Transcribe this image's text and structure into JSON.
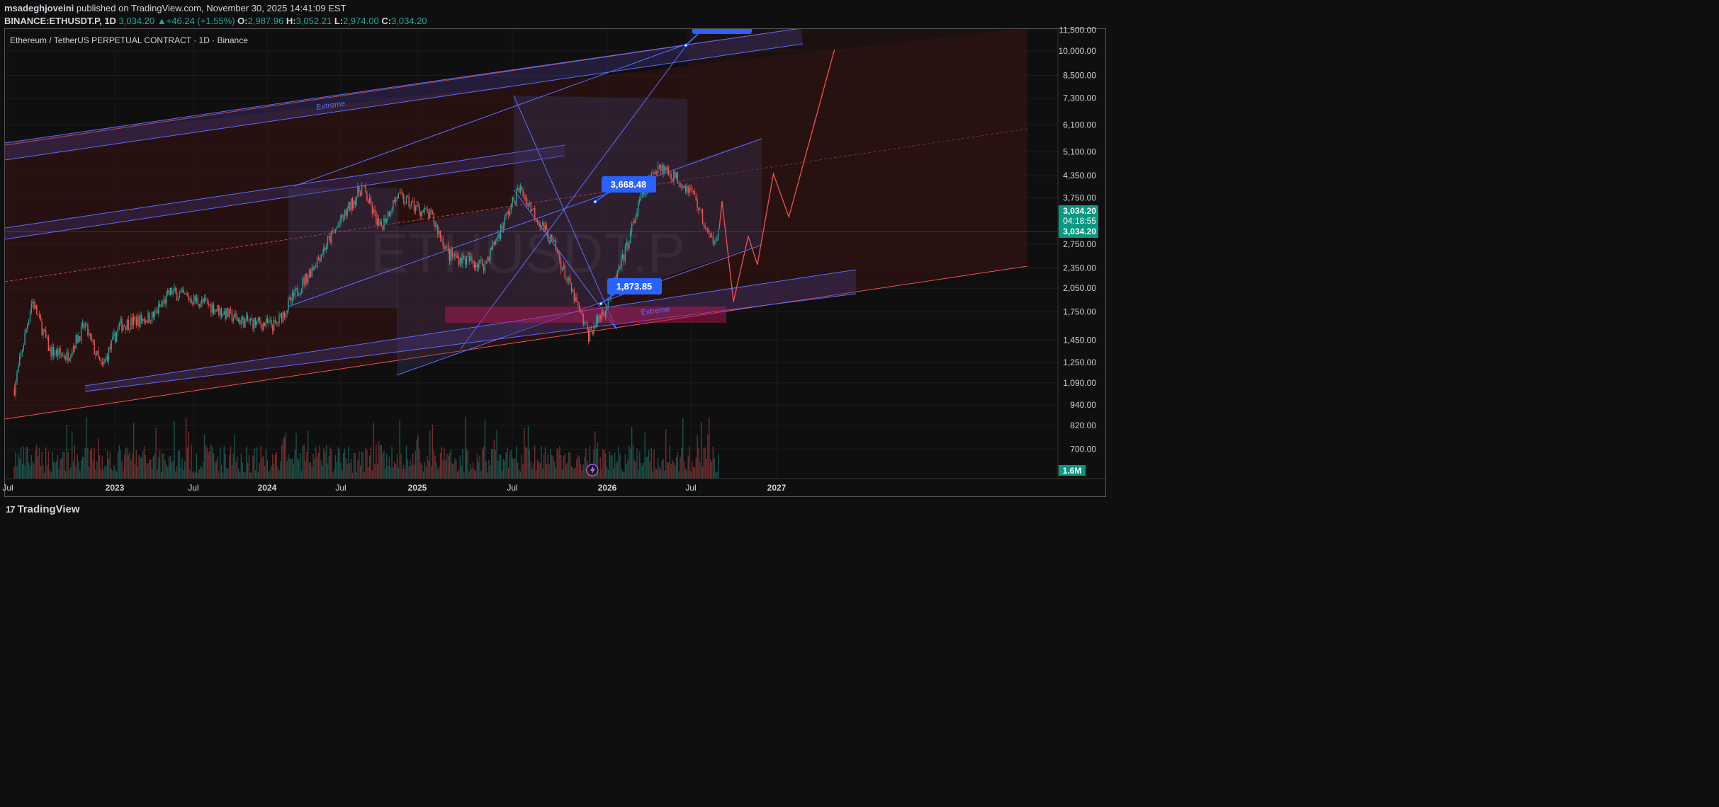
{
  "header": {
    "author": "msadeghjoveini",
    "published_text": "published on TradingView.com, November 30, 2025 14:41:09 EST",
    "symbol": "BINANCE:ETHUSDT.P, 1D",
    "last": "3,034.20",
    "change": "+46.24 (+1.55%)",
    "o_label": "O:",
    "o": "2,987.96",
    "h_label": "H:",
    "h": "3,052.21",
    "l_label": "L:",
    "l": "2,974.00",
    "c_label": "C:",
    "c": "3,034.20"
  },
  "chart_title": "Ethereum / TetherUS PERPETUAL CONTRACT · 1D · Binance",
  "watermark": "ETHUSDT.P",
  "footer": {
    "brand": "TradingView",
    "brand_mark": "17"
  },
  "annotations": {
    "top_target": "",
    "mid_target": "3,668.48",
    "low_target": "1,873.85",
    "extreme_top": "Extreme",
    "extreme_bottom": "Extreme"
  },
  "price_scale": {
    "labels": [
      "11,500.00",
      "10,000.00",
      "8,500.00",
      "7,300.00",
      "6,100.00",
      "5,100.00",
      "4,350.00",
      "3,750.00",
      "2,750.00",
      "2,350.00",
      "2,050.00",
      "1,750.00",
      "1,450.00",
      "1,250.00",
      "1,090.00",
      "940.00",
      "820.00",
      "700.00"
    ],
    "current_price": "3,034.20",
    "countdown": "04:18:55",
    "current_price_2": "3,034.20",
    "volume_badge": "1.6M"
  },
  "time_scale": {
    "labels": [
      "Jul",
      "2023",
      "Jul",
      "2024",
      "Jul",
      "2025",
      "Jul",
      "2026",
      "Jul",
      "2027"
    ]
  },
  "colors": {
    "bull": "#26a69a",
    "bear": "#ef5350",
    "accent": "#2962ff",
    "pattern": "#3f51b5"
  },
  "chart_data": {
    "type": "candlestick",
    "symbol": "ETHUSDT.P",
    "interval": "1D",
    "scale": "log",
    "ylim": [
      640,
      11800
    ],
    "x_range": [
      "2022-07",
      "2027-06"
    ],
    "price_path": [
      {
        "x": "2022-07",
        "y": 1050
      },
      {
        "x": "2022-08",
        "y": 1900
      },
      {
        "x": "2022-09",
        "y": 1350
      },
      {
        "x": "2022-10",
        "y": 1300
      },
      {
        "x": "2022-11",
        "y": 1600
      },
      {
        "x": "2022-12",
        "y": 1200
      },
      {
        "x": "2023-01",
        "y": 1600
      },
      {
        "x": "2023-03",
        "y": 1700
      },
      {
        "x": "2023-04",
        "y": 2000
      },
      {
        "x": "2023-06",
        "y": 1850
      },
      {
        "x": "2023-08",
        "y": 1650
      },
      {
        "x": "2023-10",
        "y": 1600
      },
      {
        "x": "2023-12",
        "y": 2300
      },
      {
        "x": "2024-03",
        "y": 4050
      },
      {
        "x": "2024-04",
        "y": 3050
      },
      {
        "x": "2024-05",
        "y": 3800
      },
      {
        "x": "2024-07",
        "y": 3300
      },
      {
        "x": "2024-08",
        "y": 2550
      },
      {
        "x": "2024-10",
        "y": 2400
      },
      {
        "x": "2024-12",
        "y": 4000
      },
      {
        "x": "2025-01",
        "y": 3300
      },
      {
        "x": "2025-02",
        "y": 2700
      },
      {
        "x": "2025-04",
        "y": 1500
      },
      {
        "x": "2025-05",
        "y": 1800
      },
      {
        "x": "2025-06",
        "y": 2500
      },
      {
        "x": "2025-07",
        "y": 3700
      },
      {
        "x": "2025-08",
        "y": 4700
      },
      {
        "x": "2025-09",
        "y": 4300
      },
      {
        "x": "2025-10",
        "y": 3900
      },
      {
        "x": "2025-11",
        "y": 2800
      },
      {
        "x": "2025-11-30",
        "y": 3034.2
      }
    ],
    "last_close": 3034.2,
    "projection": [
      {
        "x": "2025-11-30",
        "y": 3034.2
      },
      {
        "x": "2025-12-05",
        "y": 3668.48
      },
      {
        "x": "2025-12-25",
        "y": 1873.85
      },
      {
        "x": "2026-01-20",
        "y": 2900
      },
      {
        "x": "2026-02-05",
        "y": 2400
      },
      {
        "x": "2026-03-05",
        "y": 4400
      },
      {
        "x": "2026-04-01",
        "y": 3300
      },
      {
        "x": "2026-06-20",
        "y": 10100
      }
    ],
    "levels": [
      {
        "label": "3,668.48",
        "y": 3668.48
      },
      {
        "label": "1,873.85",
        "y": 1873.85
      }
    ],
    "zones": [
      {
        "label": "Extreme",
        "position": "upper channel"
      },
      {
        "label": "Extreme",
        "position": "lower channel"
      }
    ],
    "grid": true,
    "volume_last": "1.6M"
  }
}
